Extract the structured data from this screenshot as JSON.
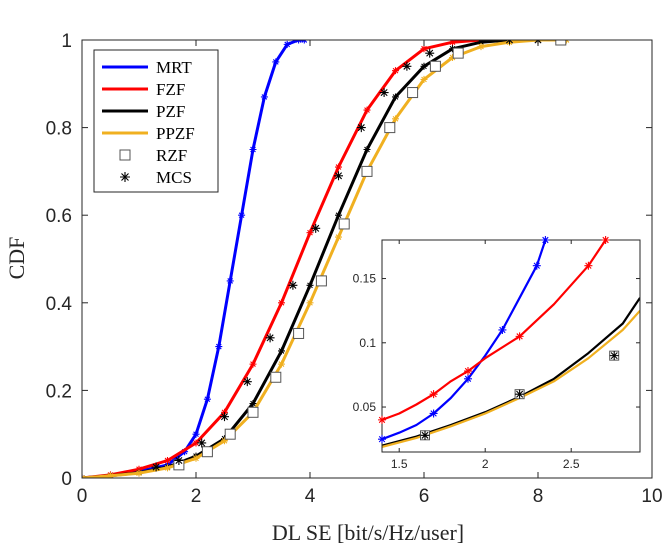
{
  "chart_data": {
    "type": "line",
    "title": "",
    "xlabel": "DL SE [bit/s/Hz/user]",
    "ylabel": "CDF",
    "xlim": [
      0,
      10
    ],
    "ylim": [
      0,
      1
    ],
    "xticks": [
      "0",
      "2",
      "4",
      "6",
      "8",
      "10"
    ],
    "yticks": [
      "0",
      "0.2",
      "0.4",
      "0.6",
      "0.8",
      "1"
    ],
    "legend_position": "top-left",
    "colors": {
      "MRT": "#0000ff",
      "FZF": "#ff0000",
      "PZF": "#000000",
      "PPZF": "#f0b020",
      "RZF": "#555555",
      "MCS": "#000000"
    },
    "legend": [
      {
        "label": "MRT",
        "kind": "line",
        "color": "#0000ff"
      },
      {
        "label": "FZF",
        "kind": "line",
        "color": "#ff0000"
      },
      {
        "label": "PZF",
        "kind": "line",
        "color": "#000000"
      },
      {
        "label": "PPZF",
        "kind": "line",
        "color": "#f0b020"
      },
      {
        "label": "RZF",
        "kind": "square",
        "color": "#555555"
      },
      {
        "label": "MCS",
        "kind": "star",
        "color": "#000000"
      }
    ],
    "series": [
      {
        "name": "MRT",
        "x": [
          0,
          0.5,
          1,
          1.5,
          1.8,
          2,
          2.2,
          2.4,
          2.6,
          2.8,
          3.0,
          3.2,
          3.4,
          3.6,
          3.8,
          3.9
        ],
        "y": [
          0,
          0.006,
          0.015,
          0.03,
          0.06,
          0.1,
          0.18,
          0.3,
          0.45,
          0.6,
          0.75,
          0.87,
          0.95,
          0.99,
          1.0,
          1.0
        ]
      },
      {
        "name": "FZF",
        "x": [
          0,
          0.5,
          1,
          1.5,
          2,
          2.5,
          3,
          3.5,
          4,
          4.5,
          5,
          5.5,
          6,
          6.5,
          7,
          7.5
        ],
        "y": [
          0,
          0.007,
          0.02,
          0.04,
          0.08,
          0.15,
          0.26,
          0.4,
          0.56,
          0.71,
          0.84,
          0.93,
          0.98,
          0.995,
          1.0,
          1.0
        ]
      },
      {
        "name": "PZF",
        "x": [
          0,
          0.5,
          1,
          1.5,
          2,
          2.5,
          3,
          3.5,
          4,
          4.5,
          5,
          5.5,
          6,
          6.5,
          7,
          7.5,
          8
        ],
        "y": [
          0,
          0.005,
          0.012,
          0.025,
          0.05,
          0.09,
          0.17,
          0.29,
          0.44,
          0.6,
          0.75,
          0.87,
          0.94,
          0.98,
          0.995,
          1.0,
          1.0
        ]
      },
      {
        "name": "PPZF",
        "x": [
          0,
          0.5,
          1,
          1.5,
          2,
          2.5,
          3,
          3.5,
          4,
          4.5,
          5,
          5.5,
          6,
          6.5,
          7,
          7.5,
          8,
          8.5
        ],
        "y": [
          0,
          0.005,
          0.011,
          0.023,
          0.045,
          0.085,
          0.15,
          0.26,
          0.4,
          0.55,
          0.7,
          0.82,
          0.91,
          0.96,
          0.985,
          0.995,
          1.0,
          1.0
        ]
      },
      {
        "name": "RZF",
        "x": [
          1.7,
          2.2,
          2.6,
          3.0,
          3.4,
          3.8,
          4.2,
          4.6,
          5.0,
          5.4,
          5.8,
          6.2,
          6.6,
          8.4
        ],
        "y": [
          0.03,
          0.06,
          0.1,
          0.15,
          0.23,
          0.33,
          0.45,
          0.58,
          0.7,
          0.8,
          0.88,
          0.94,
          0.97,
          1.0
        ]
      },
      {
        "name": "MCS",
        "x": [
          1.3,
          1.7,
          2.1,
          2.5,
          2.9,
          3.3,
          3.7,
          4.1,
          4.5,
          4.9,
          5.3,
          5.7,
          6.1,
          7.5,
          8.0
        ],
        "y": [
          0.025,
          0.04,
          0.08,
          0.14,
          0.22,
          0.32,
          0.44,
          0.57,
          0.69,
          0.8,
          0.88,
          0.94,
          0.97,
          1.0,
          1.0
        ]
      }
    ],
    "inset": {
      "xlim": [
        1.4,
        2.9
      ],
      "ylim": [
        0.015,
        0.18
      ],
      "xticks": [
        "1.5",
        "2",
        "2.5"
      ],
      "yticks": [
        "0.05",
        "0.1",
        "0.15"
      ],
      "series": [
        {
          "name": "MRT",
          "x": [
            1.4,
            1.5,
            1.6,
            1.7,
            1.8,
            1.9,
            2.0,
            2.1,
            2.2,
            2.3,
            2.35
          ],
          "y": [
            0.025,
            0.03,
            0.036,
            0.045,
            0.057,
            0.072,
            0.09,
            0.11,
            0.135,
            0.16,
            0.18
          ]
        },
        {
          "name": "FZF",
          "x": [
            1.4,
            1.5,
            1.6,
            1.7,
            1.8,
            1.9,
            2.0,
            2.2,
            2.4,
            2.6,
            2.7
          ],
          "y": [
            0.04,
            0.045,
            0.052,
            0.06,
            0.07,
            0.078,
            0.088,
            0.105,
            0.13,
            0.16,
            0.18
          ]
        },
        {
          "name": "PZF",
          "x": [
            1.4,
            1.6,
            1.8,
            2.0,
            2.2,
            2.4,
            2.6,
            2.8,
            2.9
          ],
          "y": [
            0.02,
            0.027,
            0.036,
            0.046,
            0.058,
            0.072,
            0.092,
            0.115,
            0.135
          ]
        },
        {
          "name": "PPZF",
          "x": [
            1.4,
            1.6,
            1.8,
            2.0,
            2.2,
            2.4,
            2.6,
            2.8,
            2.9
          ],
          "y": [
            0.019,
            0.026,
            0.035,
            0.045,
            0.057,
            0.07,
            0.088,
            0.11,
            0.125
          ]
        },
        {
          "name": "RZF",
          "x": [
            1.65,
            2.2,
            2.75
          ],
          "y": [
            0.028,
            0.06,
            0.09
          ]
        },
        {
          "name": "MCS",
          "x": [
            1.65,
            2.2,
            2.75
          ],
          "y": [
            0.028,
            0.06,
            0.09
          ]
        }
      ]
    }
  }
}
